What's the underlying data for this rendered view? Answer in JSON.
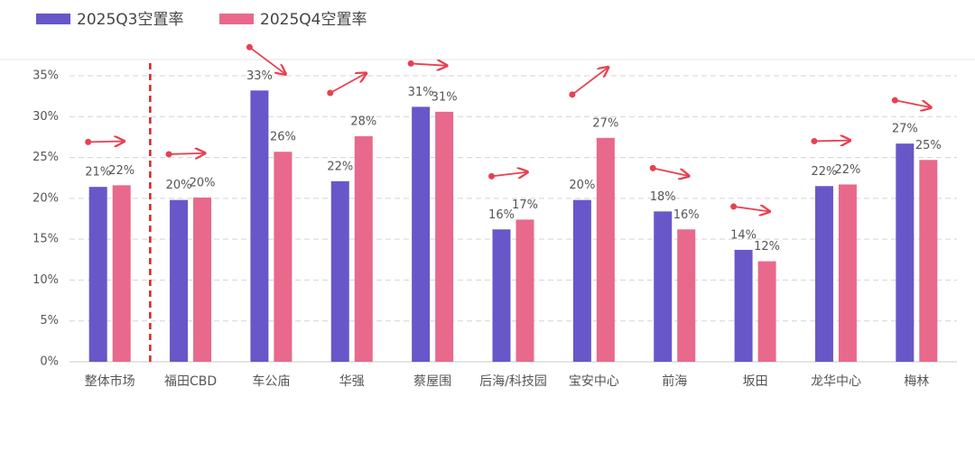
{
  "chart_data": {
    "type": "bar",
    "categories": [
      "整体市场",
      "福田CBD",
      "车公庙",
      "华强",
      "蔡屋围",
      "后海/科技园",
      "宝安中心",
      "前海",
      "坂田",
      "龙华中心",
      "梅林"
    ],
    "series": [
      {
        "name": "2025Q3空置率",
        "color": "#6757c9",
        "values": [
          21.4,
          19.8,
          33.2,
          22.1,
          31.2,
          16.2,
          19.8,
          18.4,
          13.7,
          21.5,
          26.7
        ],
        "value_labels": [
          "21%",
          "20%",
          "33%",
          "22%",
          "31%",
          "16%",
          "20%",
          "18%",
          "14%",
          "22%",
          "27%"
        ]
      },
      {
        "name": "2025Q4空置率",
        "color": "#e8698b",
        "values": [
          21.6,
          20.1,
          25.7,
          27.6,
          30.6,
          17.4,
          27.4,
          16.2,
          12.3,
          21.7,
          24.7
        ],
        "value_labels": [
          "22%",
          "20%",
          "26%",
          "28%",
          "31%",
          "17%",
          "27%",
          "16%",
          "12%",
          "22%",
          "25%"
        ]
      }
    ],
    "ylim": [
      0,
      35
    ],
    "yticks": [
      {
        "value": 0,
        "label": "0%"
      },
      {
        "value": 5,
        "label": "5%"
      },
      {
        "value": 10,
        "label": "10%"
      },
      {
        "value": 15,
        "label": "15%"
      },
      {
        "value": 20,
        "label": "20%"
      },
      {
        "value": 25,
        "label": "25%"
      },
      {
        "value": 30,
        "label": "30%"
      },
      {
        "value": 35,
        "label": "35%"
      }
    ],
    "grid": true
  }
}
